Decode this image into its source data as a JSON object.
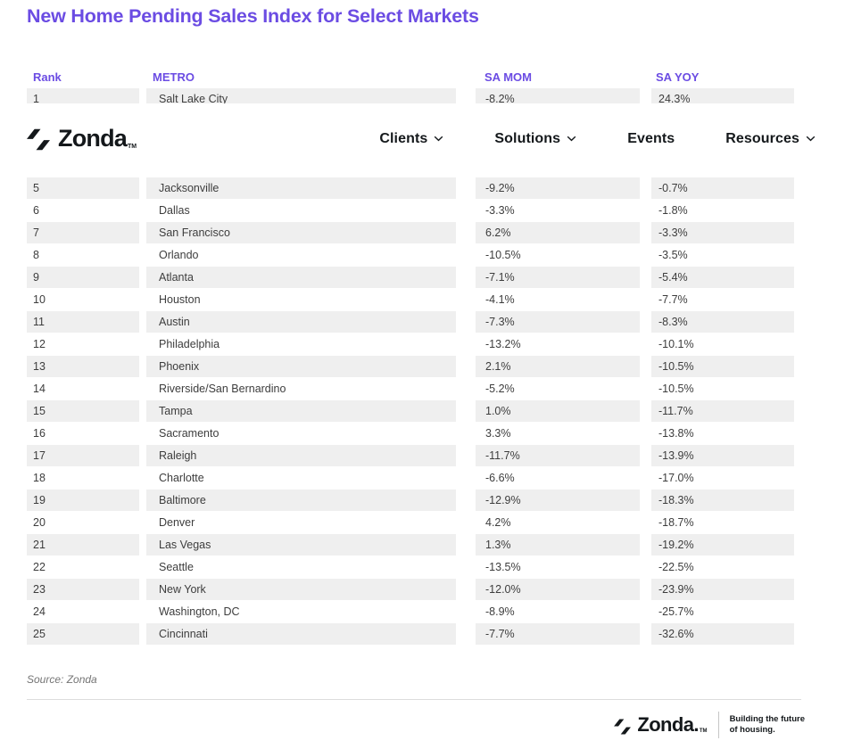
{
  "title": "New Home Pending Sales Index for Select Markets",
  "navbar": {
    "logo_text": "Zonda",
    "logo_tm": "TM",
    "items": [
      {
        "label": "Clients",
        "has_dropdown": true
      },
      {
        "label": "Solutions",
        "has_dropdown": true
      },
      {
        "label": "Events",
        "has_dropdown": false
      },
      {
        "label": "Resources",
        "has_dropdown": true
      }
    ]
  },
  "table": {
    "columns": [
      "Rank",
      "METRO",
      "SA MOM",
      "SA YOY"
    ],
    "rows": [
      {
        "rank": 1,
        "metro": "Salt Lake City",
        "sa_mom": "-8.2%",
        "sa_yoy": "24.3%"
      },
      {
        "rank": 5,
        "metro": "Jacksonville",
        "sa_mom": "-9.2%",
        "sa_yoy": "-0.7%"
      },
      {
        "rank": 6,
        "metro": "Dallas",
        "sa_mom": "-3.3%",
        "sa_yoy": "-1.8%"
      },
      {
        "rank": 7,
        "metro": "San Francisco",
        "sa_mom": "6.2%",
        "sa_yoy": "-3.3%"
      },
      {
        "rank": 8,
        "metro": "Orlando",
        "sa_mom": "-10.5%",
        "sa_yoy": "-3.5%"
      },
      {
        "rank": 9,
        "metro": "Atlanta",
        "sa_mom": "-7.1%",
        "sa_yoy": "-5.4%"
      },
      {
        "rank": 10,
        "metro": "Houston",
        "sa_mom": "-4.1%",
        "sa_yoy": "-7.7%"
      },
      {
        "rank": 11,
        "metro": "Austin",
        "sa_mom": "-7.3%",
        "sa_yoy": "-8.3%"
      },
      {
        "rank": 12,
        "metro": "Philadelphia",
        "sa_mom": "-13.2%",
        "sa_yoy": "-10.1%"
      },
      {
        "rank": 13,
        "metro": "Phoenix",
        "sa_mom": "2.1%",
        "sa_yoy": "-10.5%"
      },
      {
        "rank": 14,
        "metro": "Riverside/San Bernardino",
        "sa_mom": "-5.2%",
        "sa_yoy": "-10.5%"
      },
      {
        "rank": 15,
        "metro": "Tampa",
        "sa_mom": "1.0%",
        "sa_yoy": "-11.7%"
      },
      {
        "rank": 16,
        "metro": "Sacramento",
        "sa_mom": "3.3%",
        "sa_yoy": "-13.8%"
      },
      {
        "rank": 17,
        "metro": "Raleigh",
        "sa_mom": "-11.7%",
        "sa_yoy": "-13.9%"
      },
      {
        "rank": 18,
        "metro": "Charlotte",
        "sa_mom": "-6.6%",
        "sa_yoy": "-17.0%"
      },
      {
        "rank": 19,
        "metro": "Baltimore",
        "sa_mom": "-12.9%",
        "sa_yoy": "-18.3%"
      },
      {
        "rank": 20,
        "metro": "Denver",
        "sa_mom": "4.2%",
        "sa_yoy": "-18.7%"
      },
      {
        "rank": 21,
        "metro": "Las Vegas",
        "sa_mom": "1.3%",
        "sa_yoy": "-19.2%"
      },
      {
        "rank": 22,
        "metro": "Seattle",
        "sa_mom": "-13.5%",
        "sa_yoy": "-22.5%"
      },
      {
        "rank": 23,
        "metro": "New York",
        "sa_mom": "-12.0%",
        "sa_yoy": "-23.9%"
      },
      {
        "rank": 24,
        "metro": "Washington, DC",
        "sa_mom": "-8.9%",
        "sa_yoy": "-25.7%"
      },
      {
        "rank": 25,
        "metro": "Cincinnati",
        "sa_mom": "-7.7%",
        "sa_yoy": "-32.6%"
      }
    ]
  },
  "source_note": "Source: Zonda",
  "footer": {
    "logo_text": "Zonda.",
    "logo_tm": "TM",
    "tagline_line1": "Building the future",
    "tagline_line2": "of housing."
  },
  "colors": {
    "accent_purple": "#6B4CE3",
    "row_shade": "#EFEFEF",
    "body_text": "#3D3D3D",
    "nav_text": "#14181B"
  }
}
